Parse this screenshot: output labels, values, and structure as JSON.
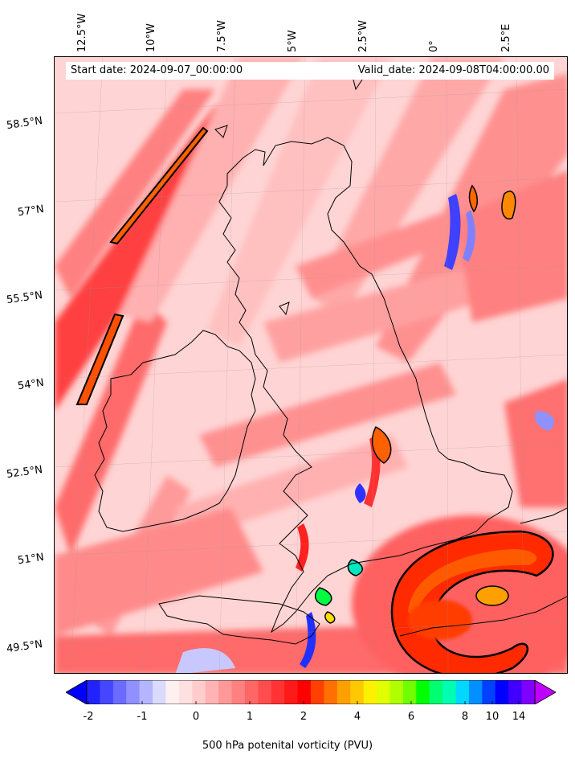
{
  "header": {
    "start_date": "Start date: 2024-09-07_00:00:00",
    "valid_date": "Valid_date: 2024-09-08T04:00:00.00"
  },
  "axes": {
    "longitude_labels": [
      "12.5°W",
      "10°W",
      "7.5°W",
      "5°W",
      "2.5°W",
      "0°",
      "2.5°E"
    ],
    "latitude_labels": [
      "58.5°N",
      "57°N",
      "55.5°N",
      "54°N",
      "52.5°N",
      "51°N",
      "49.5°N"
    ]
  },
  "colorbar": {
    "title": "500 hPa potenital vorticity (PVU)",
    "tick_labels": [
      "-2",
      "-1",
      "0",
      "1",
      "2",
      "4",
      "6",
      "8",
      "10",
      "14"
    ],
    "colors": [
      "#0000ff",
      "#2222ff",
      "#4646ff",
      "#6b6bff",
      "#9090ff",
      "#b5b5ff",
      "#dadaff",
      "#fff0f0",
      "#ffe0e0",
      "#ffcccc",
      "#ffb3b3",
      "#ff9999",
      "#ff8080",
      "#ff6666",
      "#ff4d4d",
      "#ff3333",
      "#ff1a1a",
      "#ff0000",
      "#ff4000",
      "#ff7000",
      "#ffa000",
      "#ffc800",
      "#fff000",
      "#e0ff00",
      "#b0ff00",
      "#70ff00",
      "#00ff00",
      "#00ff70",
      "#00ffb0",
      "#00d8ff",
      "#0090ff",
      "#0040ff",
      "#0000ff",
      "#4000ff",
      "#8000ff",
      "#c000ff"
    ]
  }
}
